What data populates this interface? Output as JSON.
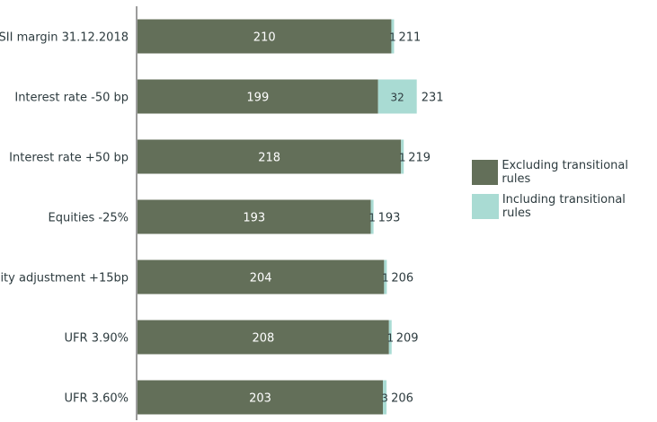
{
  "colors": {
    "excluding": "#636f59",
    "including": "#a9dbd3",
    "axis": "#3a3a3a"
  },
  "legend": {
    "excluding_label": "Excluding transitional rules",
    "including_label": "Including transitional rules"
  },
  "chart_data": {
    "type": "bar",
    "orientation": "horizontal",
    "stacked": true,
    "title": "",
    "xlabel": "",
    "ylabel": "",
    "categories": [
      "SII margin 31.12.2018",
      "Interest rate -50 bp",
      "Interest rate +50 bp",
      "Equities -25%",
      "ility adjustment +15bp",
      "UFR 3.90%",
      "UFR 3.60%"
    ],
    "series": [
      {
        "name": "Excluding transitional rules",
        "values": [
          210,
          199,
          218,
          193,
          204,
          208,
          203
        ]
      },
      {
        "name": "Including transitional rules",
        "values": [
          1,
          32,
          1,
          1,
          1,
          1,
          3
        ]
      }
    ],
    "totals": [
      "211",
      "231",
      "219",
      "193",
      "206",
      "209",
      "206"
    ],
    "xlim": [
      0,
      232
    ],
    "grid": false,
    "legend_position": "right"
  }
}
